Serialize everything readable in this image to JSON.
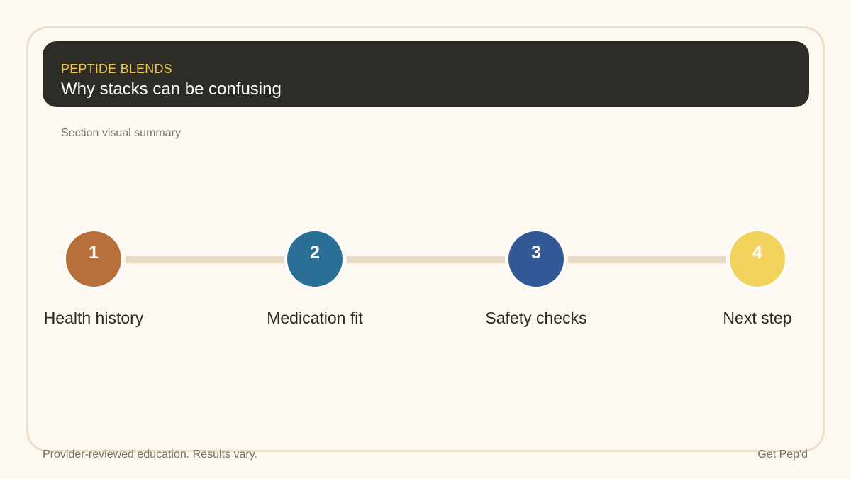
{
  "header": {
    "eyebrow": "PEPTIDE BLENDS",
    "title": "Why stacks can be confusing"
  },
  "subtitle": "Section visual summary",
  "steps": [
    {
      "number": "1",
      "label": "Health history",
      "color": "#b8703a"
    },
    {
      "number": "2",
      "label": "Medication fit",
      "color": "#2c6f96"
    },
    {
      "number": "3",
      "label": "Safety checks",
      "color": "#325896"
    },
    {
      "number": "4",
      "label": "Next step",
      "color": "#f2d35e"
    }
  ],
  "footer": {
    "disclaimer": "Provider-reviewed education. Results vary.",
    "brand": "Get Pep'd"
  }
}
